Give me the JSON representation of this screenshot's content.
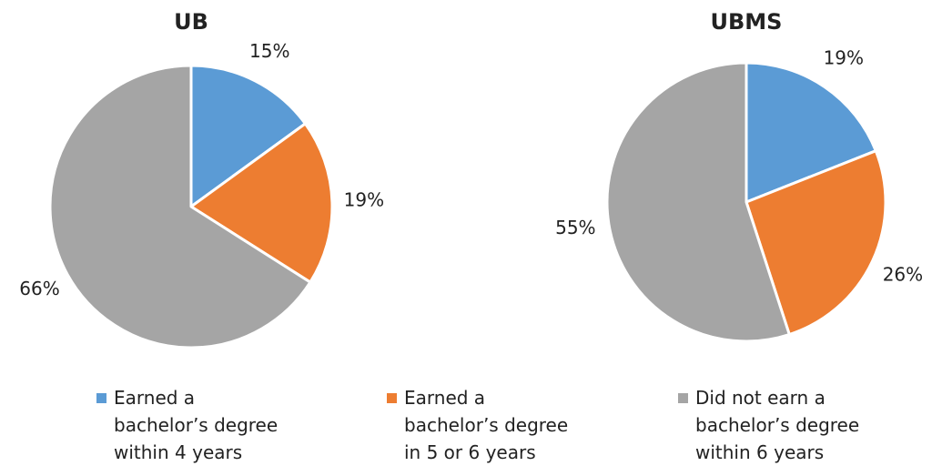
{
  "chart_data": [
    {
      "type": "pie",
      "title": "UB",
      "values": [
        15,
        19,
        66
      ],
      "value_labels": [
        "15%",
        "19%",
        "66%"
      ]
    },
    {
      "type": "pie",
      "title": "UBMS",
      "values": [
        19,
        26,
        55
      ],
      "value_labels": [
        "19%",
        "26%",
        "55%"
      ]
    }
  ],
  "legend": {
    "categories": [
      "Earned a bachelor’s degree within 4 years",
      "Earned a bachelor’s degree in 5 or 6 years",
      "Did not earn a bachelor’s degree within 6 years"
    ],
    "colors": [
      "#5b9bd5",
      "#ed7d31",
      "#a5a5a5"
    ]
  }
}
